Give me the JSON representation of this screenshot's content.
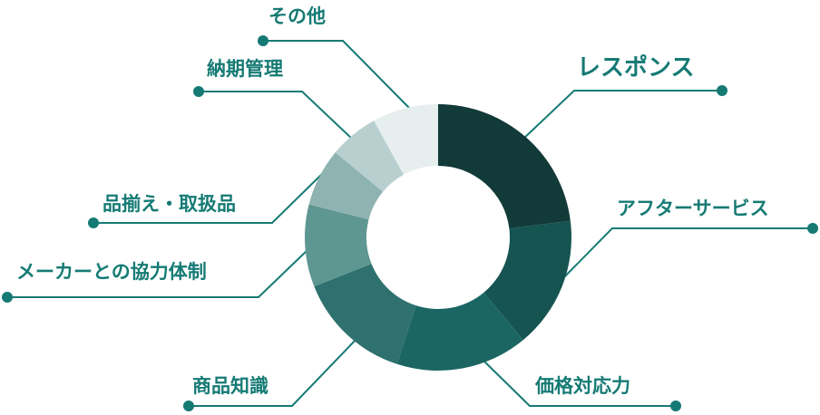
{
  "chart_data": {
    "type": "pie",
    "donut": true,
    "title": "",
    "start": "top",
    "direction": "clockwise",
    "categories": [
      "レスポンス",
      "アフターサービス",
      "価格対応力",
      "商品知識",
      "メーカーとの協力体制",
      "品揃え・取扱品",
      "納期管理",
      "その他"
    ],
    "values": [
      23,
      16,
      16,
      14,
      10,
      7,
      6,
      8
    ],
    "colors": [
      "#113a38",
      "#155451",
      "#1b6663",
      "#2e716e",
      "#5e9692",
      "#8eb3b1",
      "#b8cfcf",
      "#e6efee"
    ],
    "label_color": "#157a74",
    "leader_color": "#157a74",
    "legend": "none"
  }
}
